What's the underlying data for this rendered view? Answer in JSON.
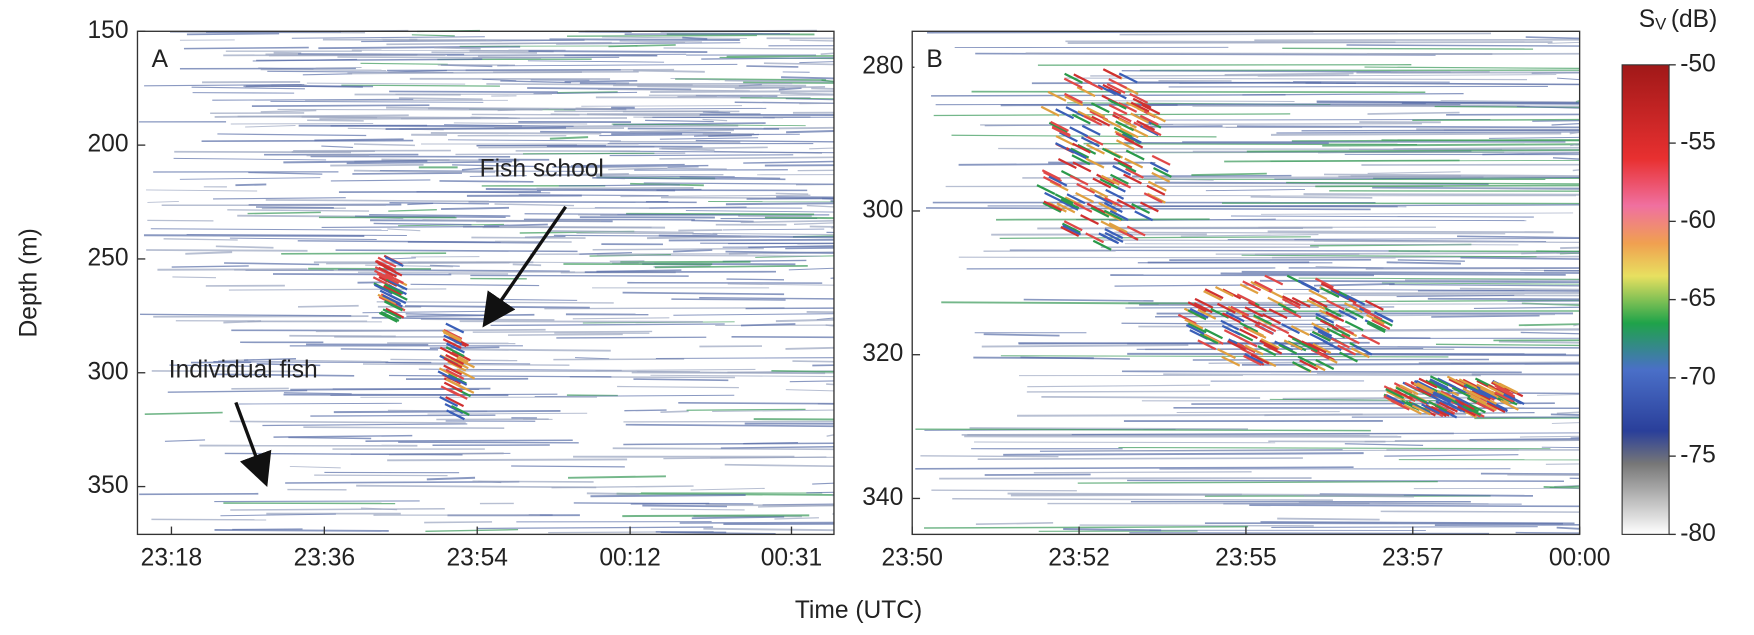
{
  "xlabel": "Time (UTC)",
  "chart_data": [
    {
      "type": "echogram",
      "panel_label": "A",
      "ylabel": "Depth (m)",
      "ylim": [
        150,
        371
      ],
      "invert_y": true,
      "yticks": [
        150,
        200,
        250,
        300,
        350
      ],
      "xlim": [
        1394,
        1476
      ],
      "xticks": [
        {
          "value": 1398,
          "label": "23:18"
        },
        {
          "value": 1416,
          "label": "23:36"
        },
        {
          "value": 1434,
          "label": "23:54"
        },
        {
          "value": 1452,
          "label": "00:12"
        },
        {
          "value": 1471,
          "label": "00:31"
        }
      ],
      "annotations": [
        "Fish school",
        "Individual fish"
      ]
    },
    {
      "type": "echogram",
      "panel_label": "B",
      "ylim": [
        275,
        345
      ],
      "invert_y": true,
      "yticks": [
        280,
        300,
        320,
        340
      ],
      "xlim": [
        1430,
        1439.6
      ],
      "xticks": [
        {
          "value": 1430,
          "label": "23:50"
        },
        {
          "value": 1432.4,
          "label": "23:52"
        },
        {
          "value": 1434.8,
          "label": "23:55"
        },
        {
          "value": 1437.2,
          "label": "23:57"
        },
        {
          "value": 1439.6,
          "label": "00:00"
        }
      ]
    },
    {
      "type": "colorbar",
      "label": "S",
      "label_sub": "V",
      "label_unit": "(dB)",
      "ylim": [
        -80,
        -50
      ],
      "yticks": [
        -50,
        -55,
        -60,
        -65,
        -70,
        -75,
        -80
      ]
    }
  ]
}
